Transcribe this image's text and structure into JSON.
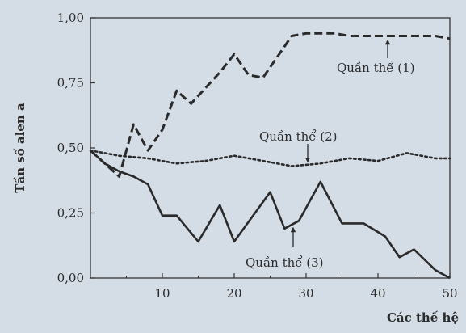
{
  "chart_data": {
    "type": "line",
    "xlabel": "Các thế hệ",
    "ylabel": "Tần số alen a",
    "xlim": [
      0,
      50
    ],
    "ylim": [
      0,
      1
    ],
    "grid": false,
    "x_ticks": [
      10,
      20,
      30,
      40,
      50
    ],
    "y_ticks": [
      0,
      0.25,
      0.5,
      0.75,
      1
    ],
    "y_tick_labels": [
      "0,00",
      "0,25",
      "0,50",
      "0,75",
      "1,00"
    ],
    "series": [
      {
        "name": "Quần thể (1)",
        "style": "dashed",
        "x": [
          0,
          2,
          4,
          6,
          8,
          10,
          12,
          14,
          16,
          18,
          20,
          22,
          24,
          26,
          28,
          30,
          32,
          34,
          36,
          38,
          40,
          42,
          44,
          46,
          48,
          50
        ],
        "y": [
          0.49,
          0.44,
          0.39,
          0.59,
          0.49,
          0.57,
          0.72,
          0.67,
          0.73,
          0.79,
          0.86,
          0.78,
          0.77,
          0.85,
          0.93,
          0.94,
          0.94,
          0.94,
          0.93,
          0.93,
          0.93,
          0.93,
          0.93,
          0.93,
          0.93,
          0.92
        ]
      },
      {
        "name": "Quần thể (2)",
        "style": "dotted",
        "x": [
          0,
          4,
          8,
          12,
          16,
          20,
          24,
          28,
          32,
          36,
          40,
          44,
          48,
          50
        ],
        "y": [
          0.49,
          0.47,
          0.46,
          0.44,
          0.45,
          0.47,
          0.45,
          0.43,
          0.44,
          0.46,
          0.45,
          0.48,
          0.46,
          0.46
        ]
      },
      {
        "name": "Quần thể (3)",
        "style": "solid",
        "x": [
          0,
          2,
          4,
          6,
          8,
          10,
          12,
          15,
          18,
          20,
          25,
          27,
          29,
          32,
          35,
          38,
          41,
          43,
          45,
          48,
          50
        ],
        "y": [
          0.49,
          0.44,
          0.41,
          0.39,
          0.36,
          0.24,
          0.24,
          0.14,
          0.28,
          0.14,
          0.33,
          0.19,
          0.22,
          0.37,
          0.21,
          0.21,
          0.16,
          0.08,
          0.11,
          0.03,
          0.0
        ]
      }
    ],
    "annotations": [
      {
        "text": "Quần thể (1)",
        "series": 0
      },
      {
        "text": "Quần thể (2)",
        "series": 1
      },
      {
        "text": "Quần thể (3)",
        "series": 2
      }
    ]
  }
}
